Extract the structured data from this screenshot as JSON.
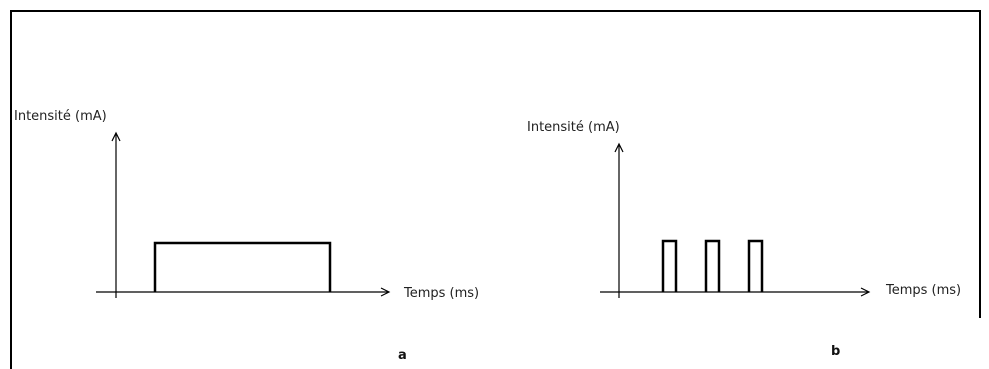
{
  "panels": [
    {
      "id": "a",
      "label": "a",
      "y_axis_label": "Intensité (mA)",
      "x_axis_label": "Temps (ms)",
      "waveform": "single-rectangular-pulse"
    },
    {
      "id": "b",
      "label": "b",
      "y_axis_label": "Intensité (mA)",
      "x_axis_label": "Temps (ms)",
      "waveform": "pulse-train-3-pulses"
    }
  ],
  "colors": {
    "frame": "#000000",
    "line": "#000000",
    "text": "#222222"
  }
}
